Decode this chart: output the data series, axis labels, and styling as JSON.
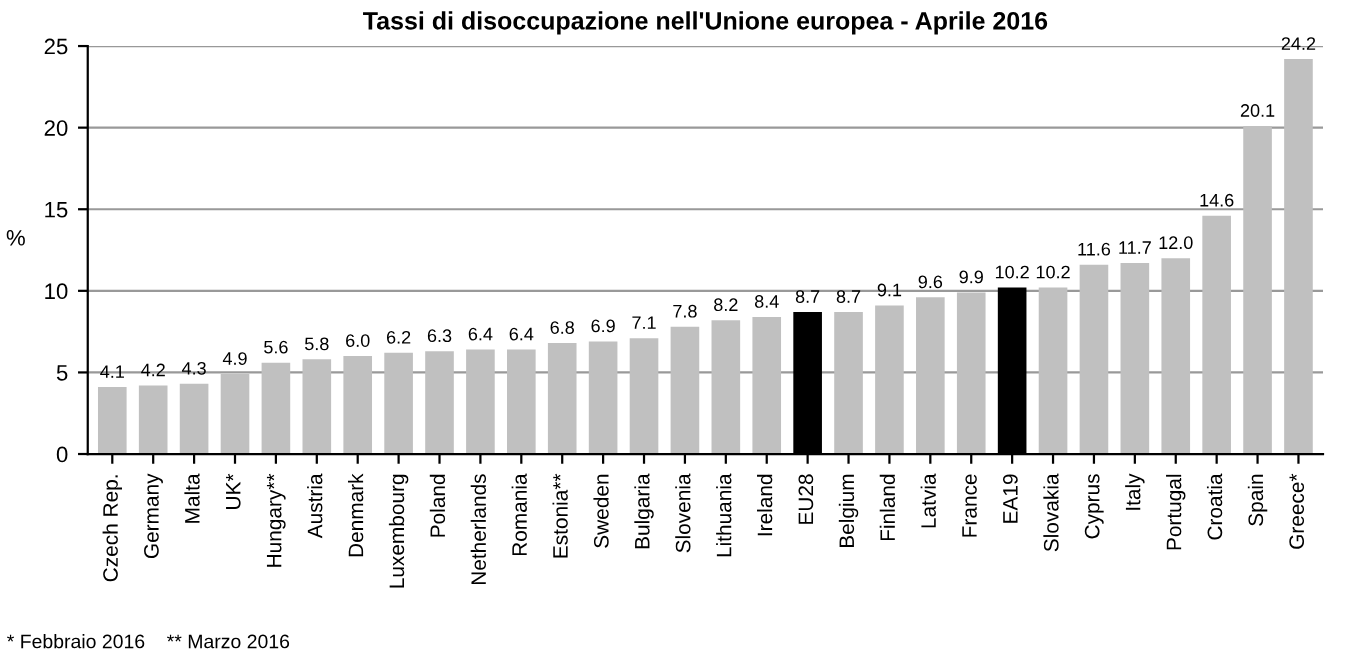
{
  "chart_data": {
    "type": "bar",
    "title": "Tassi di disoccupazione nell'Unione europea - Aprile 2016",
    "ylabel": "%",
    "categories": [
      "Czech Rep.",
      "Germany",
      "Malta",
      "UK*",
      "Hungary**",
      "Austria",
      "Denmark",
      "Luxembourg",
      "Poland",
      "Netherlands",
      "Romania",
      "Estonia**",
      "Sweden",
      "Bulgaria",
      "Slovenia",
      "Lithuania",
      "Ireland",
      "EU28",
      "Belgium",
      "Finland",
      "Latvia",
      "France",
      "EA19",
      "Slovakia",
      "Cyprus",
      "Italy",
      "Portugal",
      "Croatia",
      "Spain",
      "Greece*"
    ],
    "values": [
      4.1,
      4.2,
      4.3,
      4.9,
      5.6,
      5.8,
      6.0,
      6.2,
      6.3,
      6.4,
      6.4,
      6.8,
      6.9,
      7.1,
      7.8,
      8.2,
      8.4,
      8.7,
      8.7,
      9.1,
      9.6,
      9.9,
      10.2,
      10.2,
      11.6,
      11.7,
      12.0,
      14.6,
      20.1,
      24.2
    ],
    "value_labels": [
      "4.1",
      "4.2",
      "4.3",
      "4.9",
      "5.6",
      "5.8",
      "6.0",
      "6.2",
      "6.3",
      "6.4",
      "6.4",
      "6.8",
      "6.9",
      "7.1",
      "7.8",
      "8.2",
      "8.4",
      "8.7",
      "8.7",
      "9.1",
      "9.6",
      "9.9",
      "10.2",
      "10.2",
      "11.6",
      "11.7",
      "12.0",
      "14.6",
      "20.1",
      "24.2"
    ],
    "colors": [
      "#c0c0c0",
      "#c0c0c0",
      "#c0c0c0",
      "#c0c0c0",
      "#c0c0c0",
      "#c0c0c0",
      "#c0c0c0",
      "#c0c0c0",
      "#c0c0c0",
      "#c0c0c0",
      "#c0c0c0",
      "#c0c0c0",
      "#c0c0c0",
      "#c0c0c0",
      "#c0c0c0",
      "#c0c0c0",
      "#c0c0c0",
      "#000000",
      "#c0c0c0",
      "#c0c0c0",
      "#c0c0c0",
      "#c0c0c0",
      "#000000",
      "#c0c0c0",
      "#c0c0c0",
      "#c0c0c0",
      "#c0c0c0",
      "#c0c0c0",
      "#c0c0c0",
      "#c0c0c0"
    ],
    "ylim": [
      0,
      25
    ],
    "yticks": [
      0,
      5,
      10,
      15,
      20,
      25
    ],
    "grid": "y",
    "annotations": [
      "* Febbraio 2016    ** Marzo 2016"
    ]
  }
}
